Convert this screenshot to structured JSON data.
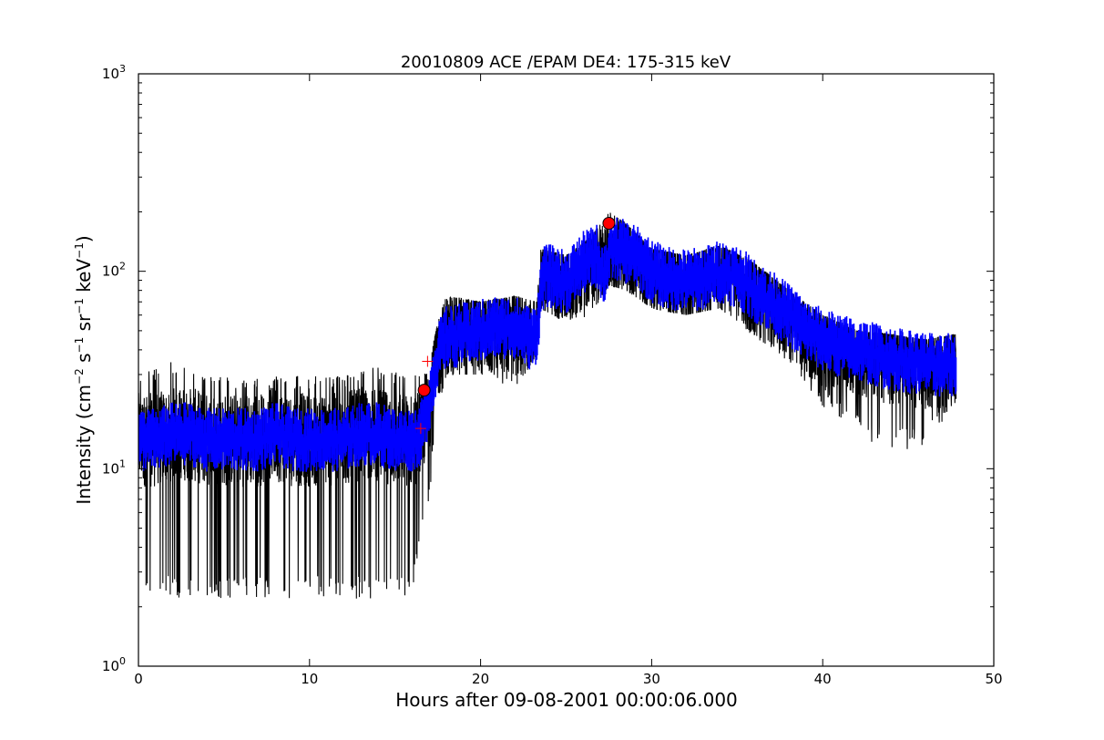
{
  "chart_data": {
    "type": "line",
    "title": "20010809 ACE /EPAM DE4: 175-315 keV",
    "xlabel": "Hours after 09-08-2001 00:00:06.000",
    "ylabel": "Intensity (cm⁻² s⁻¹ sr⁻¹ keV⁻¹)",
    "ylabel_parts": {
      "base": "Intensity (cm",
      "e1": "−2",
      "s": " s",
      "e2": "−1",
      "sr": " sr",
      "e3": "−1",
      "kev": " keV",
      "e4": "−1",
      "close": ")"
    },
    "xlim": [
      0,
      50
    ],
    "ylim": [
      1,
      1000
    ],
    "yscale": "log",
    "xticks": [
      0,
      10,
      20,
      30,
      40,
      50
    ],
    "xtick_labels": [
      "0",
      "10",
      "20",
      "30",
      "40",
      "50"
    ],
    "yticks": [
      1,
      10,
      100,
      1000
    ],
    "ytick_label_parts": [
      {
        "base": "10",
        "exp": "0"
      },
      {
        "base": "10",
        "exp": "1"
      },
      {
        "base": "10",
        "exp": "2"
      },
      {
        "base": "10",
        "exp": "3"
      }
    ],
    "grid": false,
    "series": [
      {
        "role": "raw",
        "color": "#000000",
        "x_range": [
          0.0,
          47.8
        ],
        "envelope_x": [
          0,
          2,
          4,
          6,
          8,
          10,
          12,
          14,
          16,
          16.5,
          17,
          17.5,
          18,
          20,
          22,
          23.3,
          23.5,
          25,
          26.5,
          27.5,
          28.5,
          30,
          32,
          34,
          36,
          38,
          40,
          42,
          44,
          46,
          47.8
        ],
        "envelope_low": [
          2.2,
          2.2,
          2.2,
          2.2,
          2.2,
          2.2,
          2.2,
          2.2,
          2.2,
          4.4,
          7.0,
          20,
          30,
          30,
          25,
          38,
          65,
          55,
          60,
          85,
          80,
          65,
          60,
          65,
          45,
          35,
          20,
          15,
          12,
          13,
          22
        ],
        "envelope_high": [
          30,
          35,
          30,
          30,
          30,
          30,
          30,
          33,
          30,
          30,
          35,
          55,
          75,
          70,
          75,
          70,
          130,
          120,
          150,
          200,
          175,
          130,
          120,
          135,
          110,
          80,
          60,
          50,
          48,
          45,
          48
        ]
      },
      {
        "role": "smoothed",
        "color": "#0000ff",
        "x": [
          0,
          1,
          2,
          3,
          4,
          5,
          6,
          7,
          8,
          9,
          10,
          11,
          12,
          13,
          14,
          15,
          16,
          16.5,
          17,
          17.5,
          18,
          19,
          20,
          21,
          22,
          23,
          23.3,
          23.6,
          24,
          25,
          26,
          26.8,
          27.2,
          27.6,
          28,
          29,
          30,
          31,
          32,
          33,
          34,
          35,
          36,
          37,
          38,
          39,
          40,
          41,
          42,
          43,
          44,
          45,
          46,
          47,
          47.8
        ],
        "y": [
          14,
          14,
          15,
          15,
          14,
          14,
          14,
          14,
          15,
          14,
          14,
          14,
          14,
          15,
          15,
          14,
          14,
          15,
          22,
          38,
          46,
          48,
          50,
          52,
          52,
          45,
          50,
          92,
          95,
          88,
          110,
          120,
          95,
          128,
          130,
          120,
          100,
          92,
          90,
          92,
          100,
          95,
          80,
          70,
          60,
          50,
          45,
          42,
          40,
          38,
          36,
          35,
          34,
          33,
          34
        ],
        "band": 1.22
      }
    ],
    "markers": [
      {
        "shape": "circle",
        "color": "#ff0000",
        "x": 16.7,
        "y": 25
      },
      {
        "shape": "circle",
        "color": "#ff0000",
        "x": 27.5,
        "y": 175
      },
      {
        "shape": "plus",
        "color": "#ff0000",
        "x": 16.5,
        "y": 16
      },
      {
        "shape": "plus",
        "color": "#ff0000",
        "x": 16.9,
        "y": 35
      }
    ]
  }
}
